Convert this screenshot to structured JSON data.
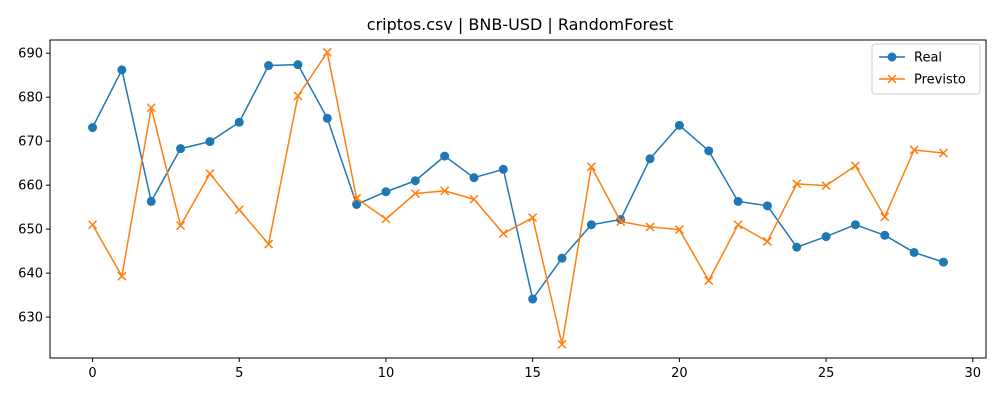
{
  "chart_data": {
    "type": "line",
    "title": "criptos.csv | BNB-USD | RandomForest",
    "xlabel": "",
    "ylabel": "",
    "xlim": [
      -1.45,
      30.45
    ],
    "ylim": [
      620.7,
      693.0
    ],
    "xticks": [
      0,
      5,
      10,
      15,
      20,
      25,
      30
    ],
    "yticks": [
      630,
      640,
      650,
      660,
      670,
      680,
      690
    ],
    "grid": false,
    "legend_position": "top-right",
    "x": [
      0,
      1,
      2,
      3,
      4,
      5,
      6,
      7,
      8,
      9,
      10,
      11,
      12,
      13,
      14,
      15,
      16,
      17,
      18,
      19,
      20,
      21,
      22,
      23,
      24,
      25,
      26,
      27,
      28,
      29
    ],
    "series": [
      {
        "name": "Real",
        "color": "#1f77b4",
        "marker": "circle",
        "values": [
          673.1,
          686.2,
          656.3,
          668.3,
          669.9,
          674.3,
          687.2,
          687.4,
          675.2,
          655.6,
          658.5,
          661.0,
          666.6,
          661.7,
          663.6,
          634.1,
          643.4,
          651.0,
          652.2,
          666.0,
          673.6,
          667.8,
          656.3,
          655.3,
          645.9,
          648.3,
          651.0,
          648.6,
          644.7,
          642.5
        ]
      },
      {
        "name": "Previsto",
        "color": "#ff7f0e",
        "marker": "x",
        "values": [
          651.0,
          639.3,
          677.6,
          650.8,
          662.6,
          654.4,
          646.6,
          680.3,
          690.2,
          657.0,
          652.3,
          658.1,
          658.7,
          656.8,
          649.0,
          652.6,
          623.8,
          664.2,
          651.7,
          650.5,
          649.9,
          638.3,
          651.0,
          647.2,
          660.3,
          659.9,
          664.4,
          652.8,
          668.0,
          667.3
        ]
      }
    ]
  }
}
